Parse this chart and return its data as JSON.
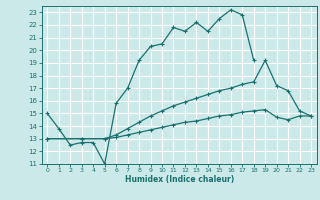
{
  "title": "",
  "xlabel": "Humidex (Indice chaleur)",
  "bg_color": "#cce9e9",
  "grid_color": "#ffffff",
  "line_color": "#1a7070",
  "xlim": [
    -0.5,
    23.5
  ],
  "ylim": [
    11,
    23.5
  ],
  "xticks": [
    0,
    1,
    2,
    3,
    4,
    5,
    6,
    7,
    8,
    9,
    10,
    11,
    12,
    13,
    14,
    15,
    16,
    17,
    18,
    19,
    20,
    21,
    22,
    23
  ],
  "yticks": [
    11,
    12,
    13,
    14,
    15,
    16,
    17,
    18,
    19,
    20,
    21,
    22,
    23
  ],
  "lines": [
    {
      "x": [
        0,
        1,
        2,
        3,
        4,
        5,
        6,
        7,
        8,
        9,
        10,
        11,
        12,
        13,
        14,
        15,
        16,
        17,
        18
      ],
      "y": [
        15.0,
        13.8,
        12.5,
        12.7,
        12.7,
        11.0,
        15.8,
        17.0,
        19.2,
        20.3,
        20.5,
        21.8,
        21.5,
        22.2,
        21.5,
        22.5,
        23.2,
        22.8,
        19.2
      ]
    },
    {
      "x": [
        0,
        3,
        5,
        6,
        7,
        8,
        9,
        10,
        11,
        12,
        13,
        14,
        15,
        16,
        17,
        18,
        19,
        20,
        21,
        22,
        23
      ],
      "y": [
        13.0,
        13.0,
        13.0,
        13.3,
        13.8,
        14.3,
        14.8,
        15.2,
        15.6,
        15.9,
        16.2,
        16.5,
        16.8,
        17.0,
        17.3,
        17.5,
        19.2,
        17.2,
        16.8,
        15.2,
        14.8
      ]
    },
    {
      "x": [
        0,
        3,
        5,
        6,
        7,
        8,
        9,
        10,
        11,
        12,
        13,
        14,
        15,
        16,
        17,
        18,
        19,
        20,
        21,
        22,
        23
      ],
      "y": [
        13.0,
        13.0,
        13.0,
        13.1,
        13.3,
        13.5,
        13.7,
        13.9,
        14.1,
        14.3,
        14.4,
        14.6,
        14.8,
        14.9,
        15.1,
        15.2,
        15.3,
        14.7,
        14.5,
        14.8,
        14.8
      ]
    }
  ]
}
